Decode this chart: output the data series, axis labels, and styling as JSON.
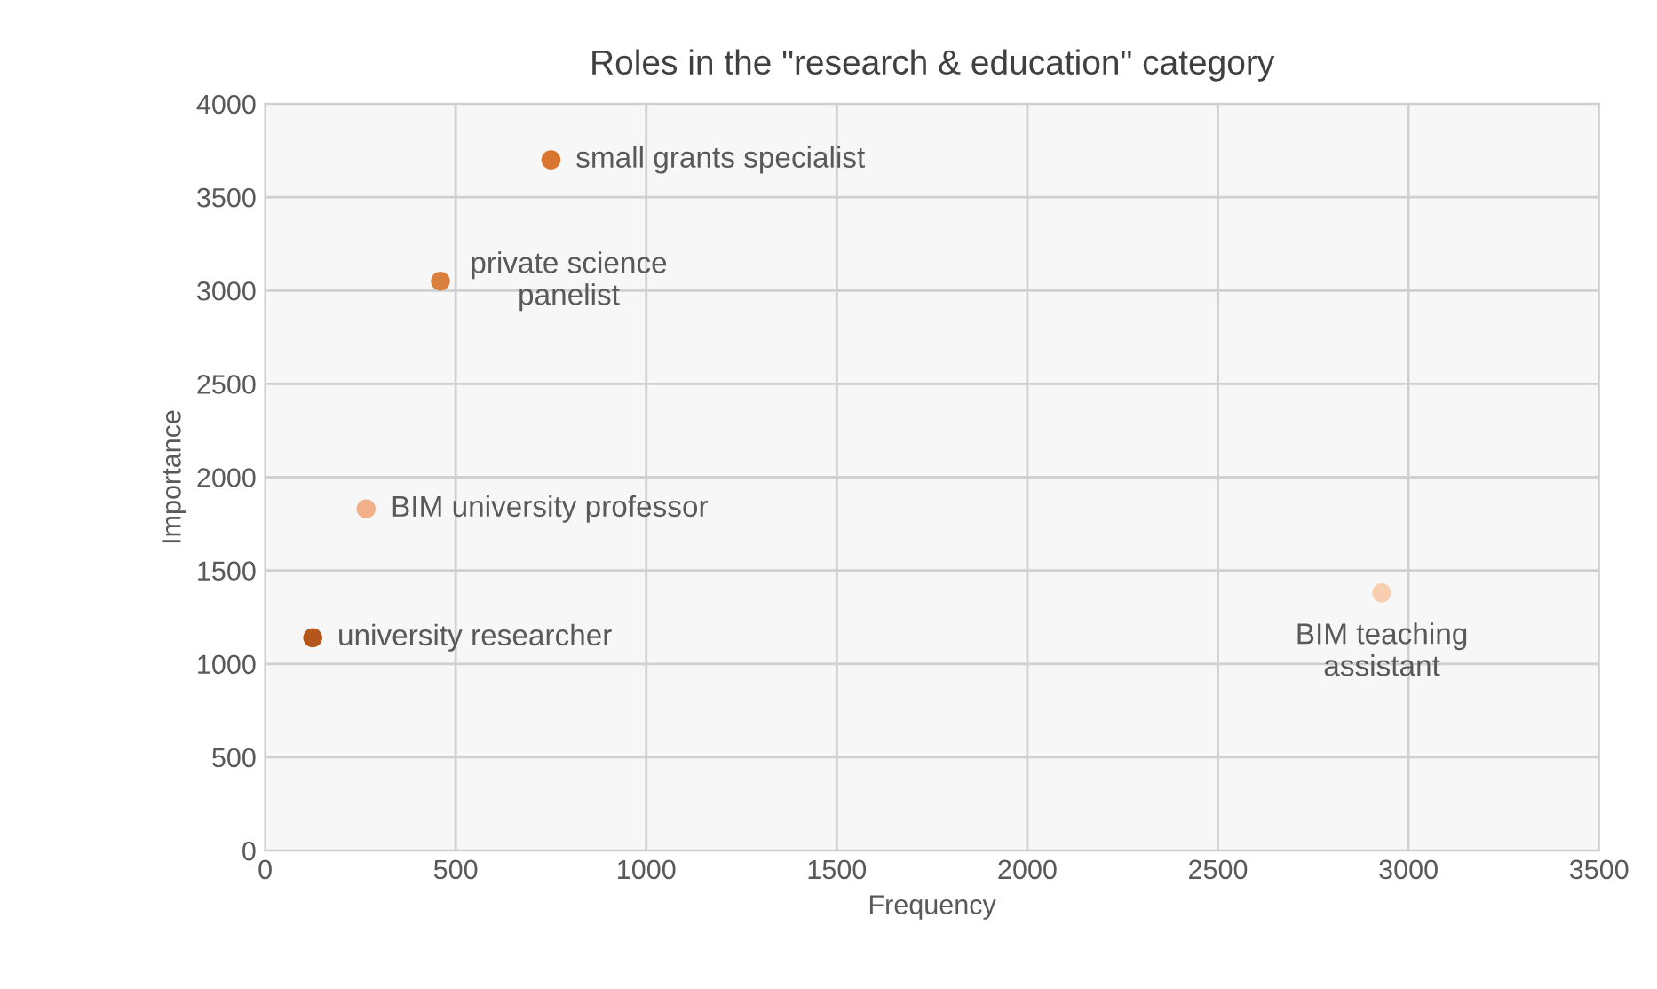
{
  "chart_data": {
    "type": "scatter",
    "title": "Roles in the \"research & education\" category",
    "xlabel": "Frequency",
    "ylabel": "Importance",
    "x": [
      750,
      460,
      265,
      125,
      2930
    ],
    "series": [
      {
        "values": [
          3700,
          3050,
          1830,
          1140,
          1380
        ],
        "colors": [
          "#d9752f",
          "#d9803f",
          "#f2b08a",
          "#b5561c",
          "#f8cdb0"
        ]
      }
    ],
    "annotations": [
      {
        "text": "small grants specialist",
        "x": 750,
        "y": 3700
      },
      {
        "text": "private science\npanelist",
        "x": 460,
        "y": 3050
      },
      {
        "text": "BIM university professor",
        "x": 265,
        "y": 1830
      },
      {
        "text": "university researcher",
        "x": 125,
        "y": 1140
      },
      {
        "text": "BIM teaching\nassistant",
        "x": 2930,
        "y": 1380
      }
    ],
    "xlim": [
      0,
      3500
    ],
    "xticks": [
      0,
      500,
      1000,
      1500,
      2000,
      2500,
      3000,
      3500
    ],
    "ylim": [
      0,
      4000
    ],
    "yticks": [
      0,
      500,
      1000,
      1500,
      2000,
      2500,
      3000,
      3500,
      4000
    ],
    "grid": true,
    "marker": "circle"
  }
}
